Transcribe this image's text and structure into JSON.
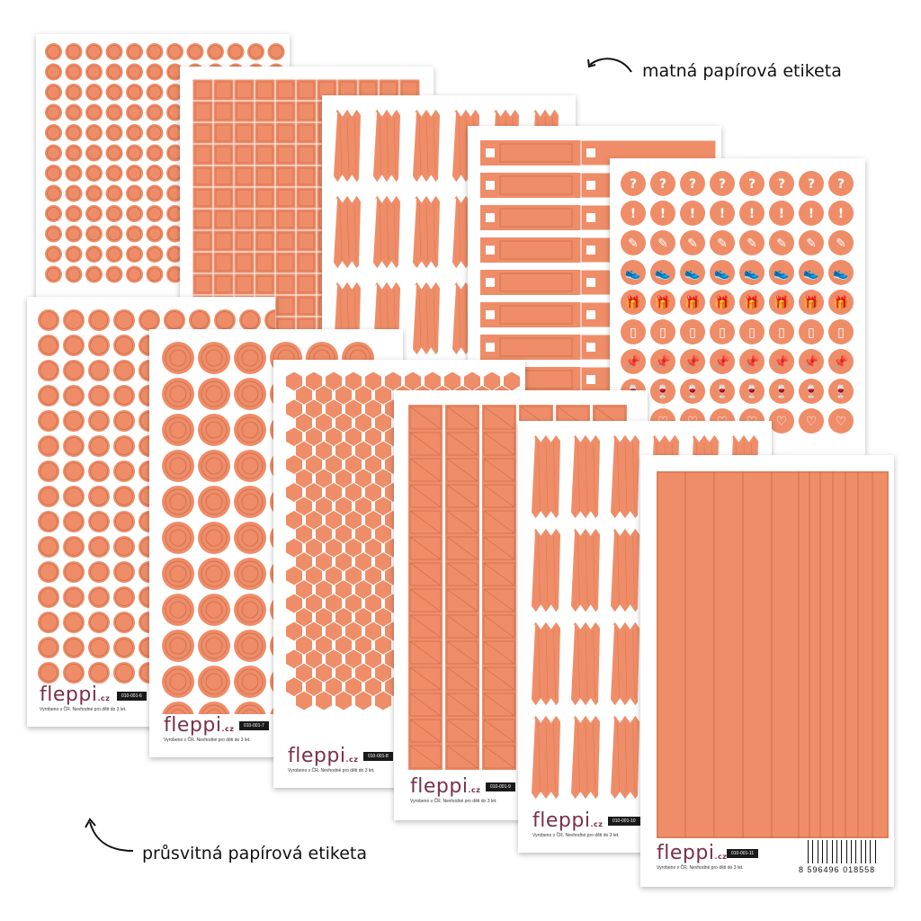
{
  "colors": {
    "label": "#ef8d68",
    "label_line": "#c96c4c",
    "brand": "#7a3048",
    "code_bg": "#1a1a1a"
  },
  "brand": {
    "name": "fleppi",
    "domain": ".cz"
  },
  "made_in": "Vyrobeno v ČR. Nevhodné pro děti do 3 let.",
  "captions": {
    "matte": "matná papírová etiketa",
    "transparent": "průsvitná papírová etiketa"
  },
  "arrow_icon": "curved-arrow-icon",
  "sheets": [
    {
      "id": "sheet-matte-circles-small",
      "type": "circles"
    },
    {
      "id": "sheet-matte-squares",
      "type": "squares"
    },
    {
      "id": "sheet-matte-brush-strokes",
      "type": "brush"
    },
    {
      "id": "sheet-matte-checkbox-bars",
      "type": "checkbars"
    },
    {
      "id": "sheet-matte-icon-circles",
      "type": "icons",
      "icons": [
        "?",
        "!",
        "✎",
        "👟",
        "🎁",
        "▯",
        "📌",
        "🍷",
        "♡"
      ]
    },
    {
      "id": "sheet-010-001-6",
      "code": "010-001-6",
      "type": "circles-big"
    },
    {
      "id": "sheet-010-001-7",
      "code": "010-001-7",
      "type": "rings"
    },
    {
      "id": "sheet-010-001-8",
      "code": "010-001-8",
      "type": "hexagons"
    },
    {
      "id": "sheet-010-001-9",
      "code": "010-001-9",
      "type": "strips-diag"
    },
    {
      "id": "sheet-010-001-10",
      "code": "010-001-10",
      "type": "brush"
    },
    {
      "id": "sheet-010-001-11",
      "code": "010-001-11",
      "type": "long-strips",
      "barcode_digits": [
        "8",
        "596496",
        "018558"
      ]
    }
  ]
}
